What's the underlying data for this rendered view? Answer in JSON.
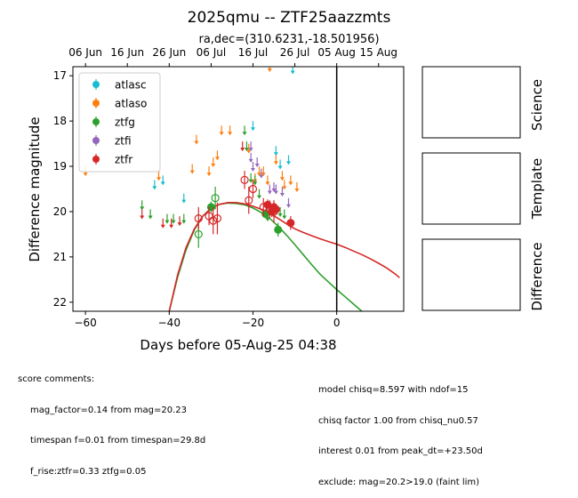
{
  "title": "2025qmu -- ZTF25aazzmts",
  "subtitle": "ra,dec=(310.6231,-18.501956)",
  "colors": {
    "atlasc": "#17becf",
    "atlaso": "#ff7f0e",
    "ztfg": "#2ca02c",
    "ztfi": "#9467bd",
    "ztfr": "#d62728",
    "peak_line": "#000000"
  },
  "side_panels": [
    {
      "label": "Science"
    },
    {
      "label": "Template"
    },
    {
      "label": "Difference"
    }
  ],
  "score_comments": {
    "header": "score comments:",
    "lines": [
      "mag_factor=0.14 from mag=20.23",
      "timespan f=0.01 from timespan=29.8d",
      "f_rise:ztfr=0.33 ztfg=0.05"
    ]
  },
  "model_comments": {
    "lines": [
      "model chisq=8.597 with ndof=15",
      "chisq factor 1.00 from chisq_nu0.57",
      "interest 0.01 from peak_dt=+23.50d",
      "exclude: mag=20.2>19.0 (faint lim)"
    ]
  },
  "chart_data": {
    "type": "scatter",
    "title": "2025qmu -- ZTF25aazzmts",
    "xlabel": "Days before 05-Aug-25 04:38",
    "ylabel": "Difference magnitude",
    "xlim": [
      -63,
      16
    ],
    "ylim": [
      22.2,
      16.8
    ],
    "y_inverted": true,
    "xticks": [
      -60,
      -40,
      -20,
      0
    ],
    "yticks": [
      17,
      18,
      19,
      20,
      21,
      22
    ],
    "top_axis": {
      "tick_labels": [
        "06 Jun",
        "16 Jun",
        "26 Jun",
        "06 Jul",
        "16 Jul",
        "26 Jul",
        "05 Aug",
        "15 Aug"
      ],
      "tick_x": [
        -60,
        -50,
        -40,
        -30,
        -20,
        -10,
        0,
        10
      ]
    },
    "legend": {
      "position": "top-left",
      "entries": [
        "atlasc",
        "atlaso",
        "ztfg",
        "ztfi",
        "ztfr"
      ]
    },
    "vertical_line_x": 0,
    "series": [
      {
        "name": "atlasc",
        "upper_limits": [
          [
            -43.5,
            19.4
          ],
          [
            -41.5,
            19.3
          ],
          [
            -36.5,
            19.7
          ],
          [
            -20,
            18.1
          ],
          [
            -14.5,
            18.65
          ],
          [
            -13.5,
            18.95
          ],
          [
            -11.5,
            18.85
          ],
          [
            -10.5,
            16.85
          ]
        ]
      },
      {
        "name": "atlaso",
        "upper_limits": [
          [
            -60,
            19.1
          ],
          [
            -42.5,
            19.2
          ],
          [
            -34.5,
            19.05
          ],
          [
            -33.5,
            18.4
          ],
          [
            -30.5,
            19.1
          ],
          [
            -29.5,
            18.9
          ],
          [
            -28.5,
            18.75
          ],
          [
            -27.5,
            18.2
          ],
          [
            -25.5,
            18.2
          ],
          [
            -21,
            18.6
          ],
          [
            -19.5,
            19.25
          ],
          [
            -18.5,
            19.1
          ],
          [
            -17.5,
            19.1
          ],
          [
            -16.5,
            19.3
          ],
          [
            -14.5,
            18.85
          ],
          [
            -13,
            19.2
          ],
          [
            -12.5,
            19.4
          ],
          [
            -11,
            19.3
          ],
          [
            -9.5,
            19.45
          ],
          [
            -16,
            16.8
          ]
        ]
      },
      {
        "name": "ztfg",
        "points": [
          [
            -30,
            19.9,
            0.12
          ],
          [
            -14,
            20.4,
            0.15
          ],
          [
            -17,
            20.05,
            0.1
          ]
        ],
        "open_points": [
          [
            -33,
            20.5,
            0.3
          ],
          [
            -29,
            19.7,
            0.25
          ]
        ],
        "upper_limits": [
          [
            -46.5,
            19.85
          ],
          [
            -44.5,
            20.05
          ],
          [
            -40.5,
            20.15
          ],
          [
            -39,
            20.15
          ],
          [
            -36.5,
            20.15
          ],
          [
            -22,
            18.2
          ],
          [
            -21.5,
            18.55
          ],
          [
            -20.5,
            19.25
          ],
          [
            -19.5,
            19.3
          ],
          [
            -18.5,
            19.6
          ],
          [
            -16.5,
            20.1
          ],
          [
            -15,
            19.95
          ],
          [
            -13.5,
            20.0
          ],
          [
            -12.5,
            20.05
          ]
        ]
      },
      {
        "name": "ztfi",
        "upper_limits": [
          [
            -20.5,
            18.8
          ],
          [
            -20,
            19.0
          ],
          [
            -19,
            18.9
          ],
          [
            -18,
            19.15
          ],
          [
            -16,
            19.5
          ],
          [
            -15,
            19.45
          ],
          [
            -14.5,
            19.5
          ],
          [
            -13,
            19.55
          ],
          [
            -11.5,
            19.8
          ],
          [
            -20.5,
            18.55
          ]
        ]
      },
      {
        "name": "ztfr",
        "points": [
          [
            -16.5,
            19.85,
            0.12
          ],
          [
            -15.5,
            20.0,
            0.12
          ],
          [
            -15,
            19.9,
            0.12
          ],
          [
            -14.5,
            19.95,
            0.12
          ],
          [
            -11,
            20.25,
            0.15
          ]
        ],
        "open_points": [
          [
            -33,
            20.15,
            0.25
          ],
          [
            -30.5,
            20.1,
            0.2
          ],
          [
            -29.5,
            20.2,
            0.3
          ],
          [
            -28.5,
            20.15,
            0.35
          ],
          [
            -22,
            19.3,
            0.2
          ],
          [
            -21,
            19.75,
            0.3
          ],
          [
            -20,
            19.5,
            0.2
          ],
          [
            -17.5,
            19.9,
            0.2
          ],
          [
            -15,
            20.0,
            0.25
          ],
          [
            -16,
            19.95,
            0.2
          ]
        ],
        "upper_limits": [
          [
            -46.5,
            20.05
          ],
          [
            -41.5,
            20.25
          ],
          [
            -39.5,
            20.25
          ],
          [
            -37.5,
            20.2
          ],
          [
            -22.5,
            18.55
          ]
        ]
      }
    ],
    "model_curves": [
      {
        "name": "ztfg",
        "x": [
          -40,
          -38,
          -36,
          -34,
          -32,
          -30,
          -28,
          -26,
          -24,
          -22,
          -20,
          -18,
          -16,
          -14,
          -12,
          -10,
          -8,
          -6,
          -4,
          -2,
          0,
          2,
          4,
          6
        ],
        "y": [
          22.2,
          21.45,
          20.85,
          20.4,
          20.1,
          19.92,
          19.84,
          19.81,
          19.82,
          19.85,
          19.92,
          20.02,
          20.15,
          20.32,
          20.52,
          20.73,
          20.95,
          21.17,
          21.38,
          21.55,
          21.72,
          21.88,
          22.04,
          22.2
        ]
      },
      {
        "name": "ztfr",
        "x": [
          -40,
          -38,
          -36,
          -34,
          -32,
          -30,
          -28,
          -26,
          -24,
          -22,
          -20,
          -18,
          -16,
          -14,
          -12,
          -10,
          -8,
          -6,
          -4,
          -2,
          0,
          2,
          4,
          6,
          8,
          10,
          12,
          14,
          15
        ],
        "y": [
          22.2,
          21.4,
          20.8,
          20.38,
          20.1,
          19.93,
          19.84,
          19.8,
          19.8,
          19.83,
          19.88,
          19.95,
          20.04,
          20.15,
          20.27,
          20.38,
          20.46,
          20.53,
          20.6,
          20.66,
          20.72,
          20.79,
          20.87,
          20.95,
          21.04,
          21.14,
          21.25,
          21.38,
          21.46
        ]
      }
    ]
  }
}
